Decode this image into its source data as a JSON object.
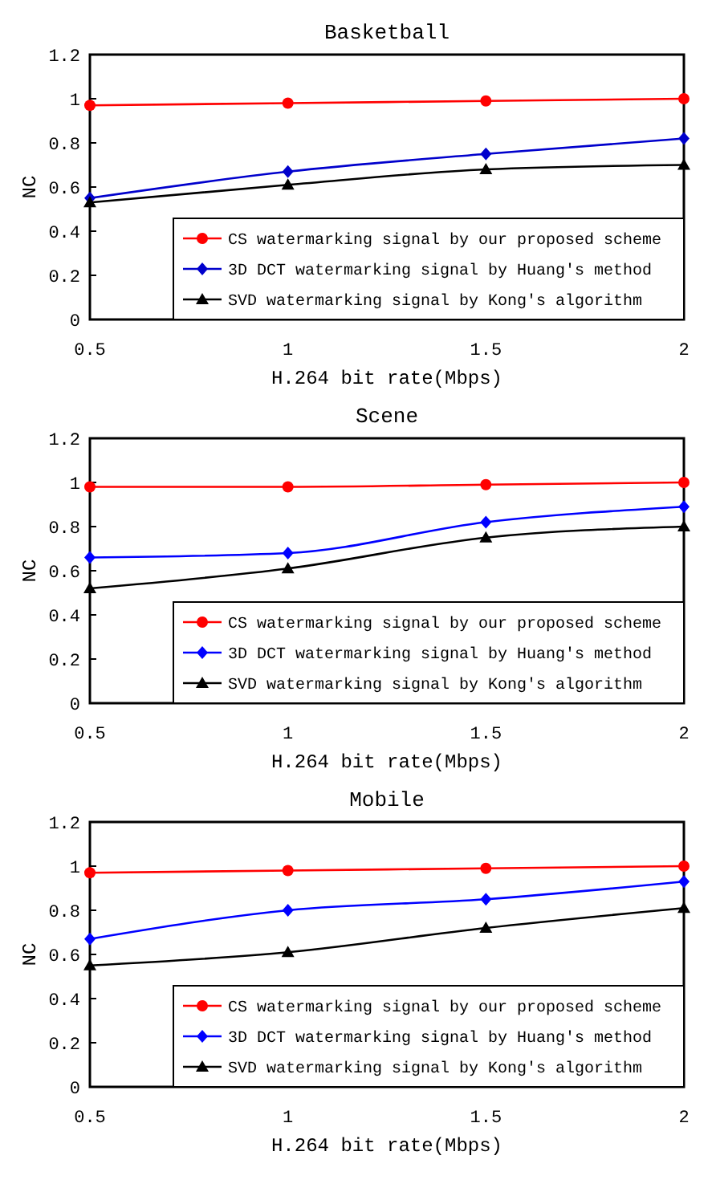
{
  "chart_data": [
    {
      "type": "line",
      "title": "Basketball",
      "xlabel": "H.264 bit rate(Mbps)",
      "ylabel": "NC",
      "x": [
        0.5,
        1,
        1.5,
        2
      ],
      "xlim": [
        0.5,
        2
      ],
      "xticks": [
        0.5,
        1,
        1.5,
        2
      ],
      "ylim": [
        0,
        1.2
      ],
      "yticks": [
        0,
        0.2,
        0.4,
        0.6,
        0.8,
        1,
        1.2
      ],
      "grid": false,
      "legend": "bottom right",
      "series": [
        {
          "name": "CS watermarking signal by our proposed scheme",
          "color": "#ff0000",
          "marker": "circle",
          "values": [
            0.97,
            0.98,
            0.99,
            1.0
          ]
        },
        {
          "name": "3D DCT watermarking signal by Huang's method",
          "color": "#0000cc",
          "marker": "diamond",
          "values": [
            0.55,
            0.67,
            0.75,
            0.82
          ]
        },
        {
          "name": "SVD watermarking signal by Kong's algorithm",
          "color": "#000000",
          "marker": "triangle",
          "values": [
            0.53,
            0.61,
            0.68,
            0.7
          ]
        }
      ]
    },
    {
      "type": "line",
      "title": "Scene",
      "xlabel": "H.264 bit rate(Mbps)",
      "ylabel": "NC",
      "x": [
        0.5,
        1,
        1.5,
        2
      ],
      "xlim": [
        0.5,
        2
      ],
      "xticks": [
        0.5,
        1,
        1.5,
        2
      ],
      "ylim": [
        0,
        1.2
      ],
      "yticks": [
        0,
        0.2,
        0.4,
        0.6,
        0.8,
        1,
        1.2
      ],
      "grid": false,
      "legend": "bottom right",
      "series": [
        {
          "name": "CS watermarking signal by our proposed scheme",
          "color": "#ff0000",
          "marker": "circle",
          "values": [
            0.98,
            0.98,
            0.99,
            1.0
          ]
        },
        {
          "name": "3D DCT watermarking signal by Huang's method",
          "color": "#0000ff",
          "marker": "diamond",
          "values": [
            0.66,
            0.68,
            0.82,
            0.89
          ]
        },
        {
          "name": "SVD watermarking signal by Kong's algorithm",
          "color": "#000000",
          "marker": "triangle",
          "values": [
            0.52,
            0.61,
            0.75,
            0.8
          ]
        }
      ]
    },
    {
      "type": "line",
      "title": "Mobile",
      "xlabel": "H.264 bit rate(Mbps)",
      "ylabel": "NC",
      "x": [
        0.5,
        1,
        1.5,
        2
      ],
      "xlim": [
        0.5,
        2
      ],
      "xticks": [
        0.5,
        1,
        1.5,
        2
      ],
      "ylim": [
        0,
        1.2
      ],
      "yticks": [
        0,
        0.2,
        0.4,
        0.6,
        0.8,
        1,
        1.2
      ],
      "grid": false,
      "legend": "bottom right",
      "series": [
        {
          "name": "CS watermarking signal by our proposed scheme",
          "color": "#ff0000",
          "marker": "circle",
          "values": [
            0.97,
            0.98,
            0.99,
            1.0
          ]
        },
        {
          "name": "3D DCT watermarking signal by Huang's method",
          "color": "#0000ff",
          "marker": "diamond",
          "values": [
            0.67,
            0.8,
            0.85,
            0.93
          ]
        },
        {
          "name": "SVD watermarking signal by Kong's algorithm",
          "color": "#000000",
          "marker": "triangle",
          "values": [
            0.55,
            0.61,
            0.72,
            0.81
          ]
        }
      ]
    }
  ]
}
